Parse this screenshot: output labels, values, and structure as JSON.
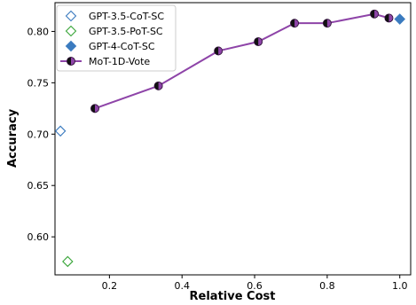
{
  "chart_data": {
    "type": "scatter",
    "title": "",
    "xlabel": "Relative Cost",
    "ylabel": "Accuracy",
    "xlim": [
      0.05,
      1.03
    ],
    "ylim": [
      0.563,
      0.828
    ],
    "xticks": [
      0.2,
      0.4,
      0.6,
      0.8,
      1.0
    ],
    "xtick_labels": [
      "0.2",
      "0.4",
      "0.6",
      "0.8",
      "1.0"
    ],
    "yticks": [
      0.6,
      0.65,
      0.7,
      0.75,
      0.8
    ],
    "ytick_labels": [
      "0.60",
      "0.65",
      "0.70",
      "0.75",
      "0.80"
    ],
    "grid": false,
    "legend_position": "top-left",
    "series": [
      {
        "name": "GPT-3.5-CoT-SC",
        "marker": "diamond-open",
        "color": "#3b7bbf",
        "points": [
          {
            "x": 0.065,
            "y": 0.703
          }
        ]
      },
      {
        "name": "GPT-3.5-PoT-SC",
        "marker": "diamond-open",
        "color": "#3aa63a",
        "points": [
          {
            "x": 0.085,
            "y": 0.576
          }
        ]
      },
      {
        "name": "GPT-4-CoT-SC",
        "marker": "diamond-filled",
        "color": "#3b7bbf",
        "points": [
          {
            "x": 1.0,
            "y": 0.812
          }
        ]
      },
      {
        "name": "MoT-1D-Vote",
        "marker": "circle-half",
        "color": "#8e44a8",
        "line": true,
        "points": [
          {
            "x": 0.16,
            "y": 0.725
          },
          {
            "x": 0.335,
            "y": 0.747
          },
          {
            "x": 0.5,
            "y": 0.781
          },
          {
            "x": 0.61,
            "y": 0.79
          },
          {
            "x": 0.71,
            "y": 0.808
          },
          {
            "x": 0.8,
            "y": 0.808
          },
          {
            "x": 0.93,
            "y": 0.817
          },
          {
            "x": 0.97,
            "y": 0.813
          }
        ]
      }
    ]
  }
}
